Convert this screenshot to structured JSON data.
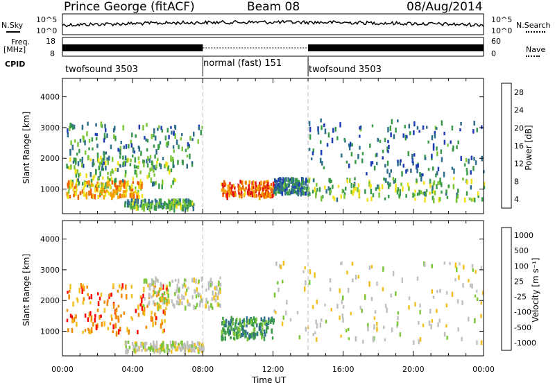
{
  "header": {
    "station": "Prince George (fitACF)",
    "beam": "Beam 08",
    "date": "08/Aug/2014"
  },
  "left_labels": {
    "nsky": "N.Sky",
    "freq": "Freq.",
    "freq_unit": "[MHz]",
    "cpid": "CPID"
  },
  "right_labels": {
    "nsearch": "N.Search",
    "nave": "Nave"
  },
  "noise_axis": {
    "ticks_left": [
      "10^5",
      "10^0"
    ],
    "ticks_right": [
      "10^5",
      "10^0"
    ]
  },
  "freq_axis": {
    "ticks_left": [
      "18",
      "8"
    ],
    "ticks_right": [
      "60",
      "0"
    ]
  },
  "cpid_segments": [
    {
      "label": "twofsound 3503",
      "start": 0,
      "end": 8
    },
    {
      "label": "normal (fast) 151",
      "start": 8,
      "end": 14
    },
    {
      "label": "twofsound 3503",
      "start": 14,
      "end": 24
    }
  ],
  "power_colorbar": {
    "label": "Power [dB]",
    "ticks": [
      "28",
      "24",
      "20",
      "16",
      "12",
      "8",
      "4"
    ]
  },
  "velocity_colorbar": {
    "label": "Velocity [m s⁻¹]",
    "ticks": [
      "1000",
      "500",
      "100",
      "25",
      "-25",
      "-100",
      "-500",
      "-1000"
    ]
  },
  "chart_data": [
    {
      "type": "heatmap",
      "title": "Power",
      "xlabel": "",
      "ylabel": "Slant Range [km]",
      "xlim": [
        0,
        24
      ],
      "ylim": [
        200,
        4600
      ],
      "x_ticks": [
        "00:00",
        "04:00",
        "08:00",
        "12:00",
        "16:00",
        "20:00",
        "00:00"
      ],
      "y_ticks": [
        1000,
        2000,
        3000,
        4000
      ],
      "colorbar": {
        "label": "Power [dB]",
        "range": [
          0,
          30
        ],
        "ticks": [
          4,
          8,
          12,
          16,
          20,
          24,
          28
        ]
      },
      "colors": [
        "#0000ff",
        "#1e3cb4",
        "#2f6e8c",
        "#3a9b4a",
        "#7cc63a",
        "#f2e21a",
        "#f4a000",
        "#f06000",
        "#e01010"
      ],
      "echo_bands": [
        {
          "t_start": 0.2,
          "t_end": 8.0,
          "range_start": 1800,
          "range_end": 3200,
          "power_db": 10
        },
        {
          "t_start": 0.2,
          "t_end": 6.5,
          "range_start": 1100,
          "range_end": 2100,
          "power_db": 14
        },
        {
          "t_start": 0.2,
          "t_end": 4.5,
          "range_start": 800,
          "range_end": 1300,
          "power_db": 22
        },
        {
          "t_start": 3.5,
          "t_end": 7.5,
          "range_start": 400,
          "range_end": 700,
          "power_db": 12
        },
        {
          "t_start": 9.0,
          "t_end": 12.0,
          "range_start": 800,
          "range_end": 1300,
          "power_db": 26
        },
        {
          "t_start": 12.0,
          "t_end": 14.0,
          "range_start": 900,
          "range_end": 1400,
          "power_db": 8
        },
        {
          "t_start": 14.0,
          "t_end": 24.0,
          "range_start": 1500,
          "range_end": 3300,
          "power_db": 8
        },
        {
          "t_start": 14.0,
          "t_end": 24.0,
          "range_start": 700,
          "range_end": 1400,
          "power_db": 14
        }
      ]
    },
    {
      "type": "heatmap",
      "title": "Velocity",
      "xlabel": "Time UT",
      "ylabel": "Slant Range [km]",
      "xlim": [
        0,
        24
      ],
      "ylim": [
        200,
        4600
      ],
      "x_ticks": [
        "00:00",
        "04:00",
        "08:00",
        "12:00",
        "16:00",
        "20:00",
        "00:00"
      ],
      "y_ticks": [
        1000,
        2000,
        3000,
        4000
      ],
      "colorbar": {
        "label": "Velocity [m s⁻¹]",
        "ticks": [
          1000,
          500,
          100,
          25,
          -25,
          -100,
          -500,
          -1000
        ]
      },
      "colors": [
        "#1a2fa0",
        "#2f6e8c",
        "#3a9b4a",
        "#7cc63a",
        "#c0c0c0",
        "#f2c020",
        "#f08a00",
        "#ff0000"
      ],
      "echo_bands": [
        {
          "t_start": 0.2,
          "t_end": 6.0,
          "range_start": 1000,
          "range_end": 2600,
          "velocity": -300
        },
        {
          "t_start": 4.5,
          "t_end": 9.0,
          "range_start": 1800,
          "range_end": 2800,
          "velocity": 0
        },
        {
          "t_start": 9.0,
          "t_end": 12.0,
          "range_start": 800,
          "range_end": 1500,
          "velocity": 300
        },
        {
          "t_start": 12.0,
          "t_end": 24.0,
          "range_start": 700,
          "range_end": 3300,
          "velocity": 0
        },
        {
          "t_start": 3.5,
          "t_end": 8.0,
          "range_start": 400,
          "range_end": 700,
          "velocity": -150
        }
      ]
    }
  ]
}
